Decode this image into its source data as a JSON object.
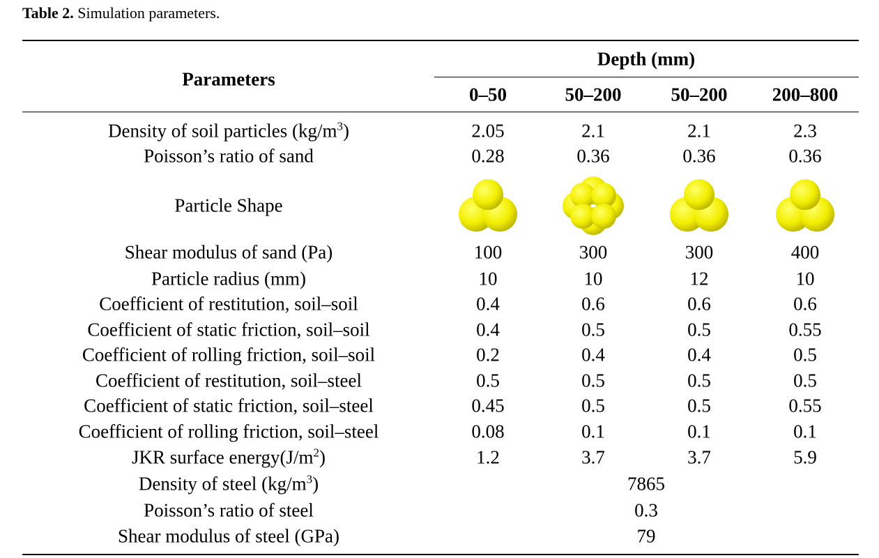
{
  "caption": {
    "label": "Table 2.",
    "text": "Simulation parameters."
  },
  "table": {
    "header": {
      "parameters": "Parameters",
      "group": "Depth (mm)",
      "columns": [
        "0–50",
        "50–200",
        "50–200",
        "200–800"
      ]
    },
    "rows": [
      {
        "label": {
          "text": "Density of soil particles (kg/m",
          "sup": "3",
          "end": ")"
        },
        "values": [
          "2.05",
          "2.1",
          "2.1",
          "2.3"
        ]
      },
      {
        "label": "Poisson’s ratio of sand",
        "values": [
          "0.28",
          "0.36",
          "0.36",
          "0.36"
        ]
      },
      {
        "label": "Particle Shape"
      },
      {
        "label": "Shear modulus of sand (Pa)",
        "values": [
          "100",
          "300",
          "300",
          "400"
        ]
      },
      {
        "label": "Particle radius (mm)",
        "values": [
          "10",
          "10",
          "12",
          "10"
        ]
      },
      {
        "label": "Coefficient of restitution, soil–soil",
        "values": [
          "0.4",
          "0.6",
          "0.6",
          "0.6"
        ]
      },
      {
        "label": "Coefficient of static friction, soil–soil",
        "values": [
          "0.4",
          "0.5",
          "0.5",
          "0.55"
        ]
      },
      {
        "label": "Coefficient of rolling friction, soil–soil",
        "values": [
          "0.2",
          "0.4",
          "0.4",
          "0.5"
        ]
      },
      {
        "label": "Coefficient of restitution, soil–steel",
        "values": [
          "0.5",
          "0.5",
          "0.5",
          "0.5"
        ]
      },
      {
        "label": "Coefficient of static friction, soil–steel",
        "values": [
          "0.45",
          "0.5",
          "0.5",
          "0.55"
        ]
      },
      {
        "label": "Coefficient of rolling friction, soil–steel",
        "values": [
          "0.08",
          "0.1",
          "0.1",
          "0.1"
        ]
      },
      {
        "label": {
          "text": "JKR surface energy(J/m",
          "sup": "2",
          "end": ")"
        },
        "values": [
          "1.2",
          "3.7",
          "3.7",
          "5.9"
        ]
      },
      {
        "label": {
          "text": "Density of steel (kg/m",
          "sup": "3",
          "end": ")"
        },
        "value": "7865"
      },
      {
        "label": "Poisson’s ratio of steel",
        "value": "0.3"
      },
      {
        "label": "Shear modulus of steel (GPa)",
        "value": "79"
      }
    ]
  }
}
